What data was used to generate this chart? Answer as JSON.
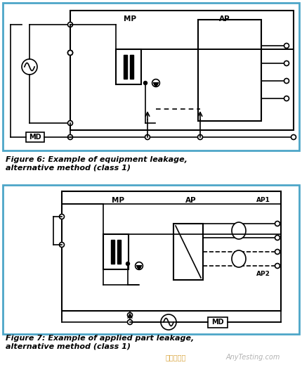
{
  "fig_width": 4.31,
  "fig_height": 5.19,
  "dpi": 100,
  "bg_color": "#ffffff",
  "border_color": "#4da6c8",
  "fig1_caption": "Figure 6: Example of equipment leakage,\nalternative method (class 1)",
  "fig2_caption": "Figure 7: Example of applied part leakage,\nalternative method (class 1)",
  "watermark1": "手校检测网",
  "watermark2": "AnyTesting.com"
}
